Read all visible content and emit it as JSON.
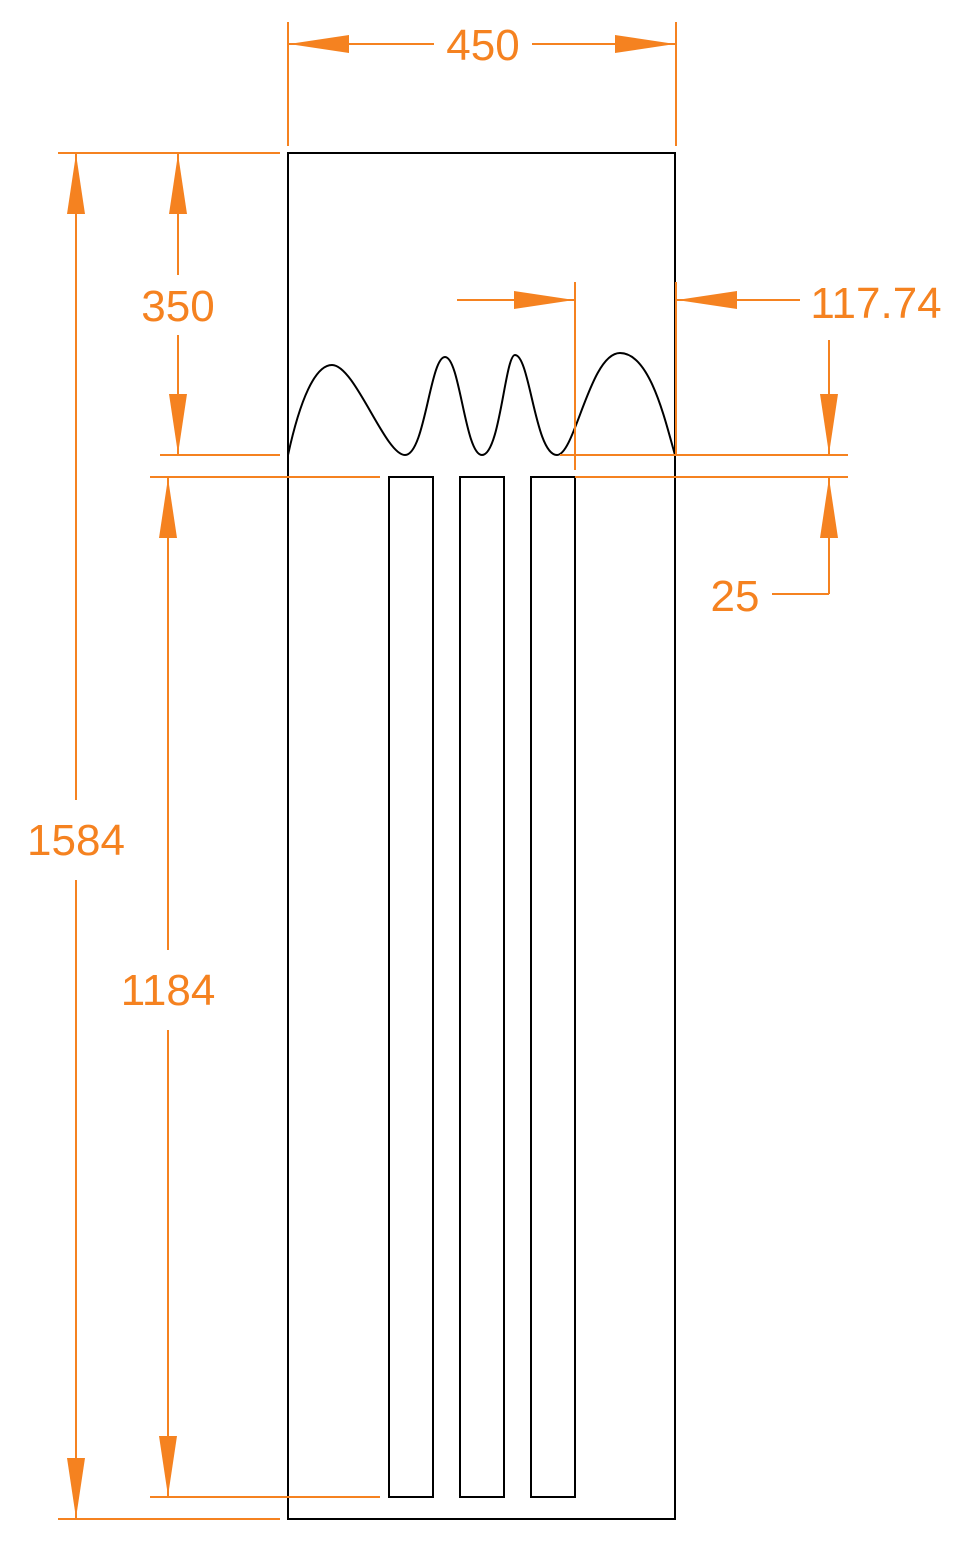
{
  "colors": {
    "dimension": "#F58220",
    "outline": "#000000",
    "background": "#FFFFFF"
  },
  "dimensions": {
    "overall_width": "450",
    "overall_height": "1584",
    "top_section_height": "350",
    "slot_height": "1184",
    "wave_segment_width": "117.74",
    "gap": "25"
  }
}
